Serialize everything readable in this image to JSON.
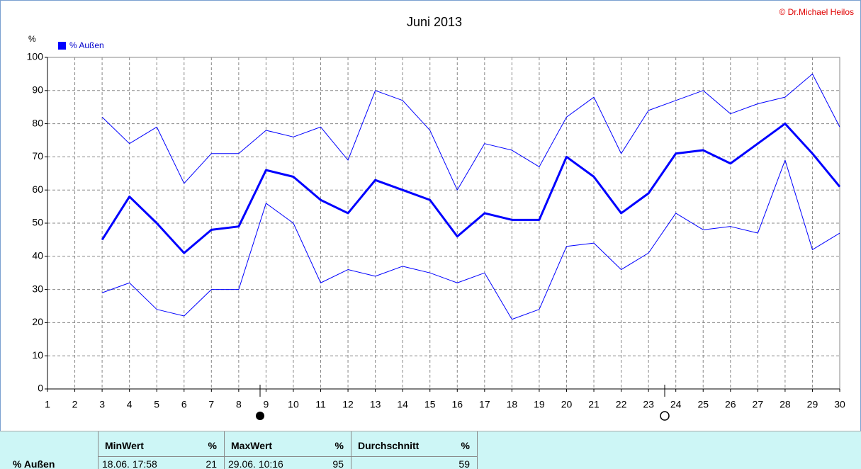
{
  "chart_data": {
    "type": "line",
    "title": "Juni 2013",
    "copyright": "© Dr.Michael Heilos",
    "y_label": "%",
    "legend": "% Außen",
    "x": [
      1,
      2,
      3,
      4,
      5,
      6,
      7,
      8,
      9,
      10,
      11,
      12,
      13,
      14,
      15,
      16,
      17,
      18,
      19,
      20,
      21,
      22,
      23,
      24,
      25,
      26,
      27,
      28,
      29,
      30
    ],
    "series": [
      {
        "color": "#0000ff",
        "width": 1,
        "values": [
          null,
          null,
          82,
          74,
          79,
          62,
          71,
          71,
          78,
          76,
          79,
          69,
          90,
          87,
          78,
          60,
          74,
          72,
          67,
          82,
          88,
          71,
          84,
          87,
          90,
          83,
          86,
          88,
          95,
          79
        ]
      },
      {
        "color": "#0000ff",
        "width": 3,
        "values": [
          null,
          null,
          45,
          58,
          50,
          41,
          48,
          49,
          66,
          64,
          57,
          53,
          63,
          60,
          57,
          46,
          53,
          51,
          51,
          70,
          64,
          53,
          59,
          71,
          72,
          68,
          74,
          80,
          71,
          61
        ]
      },
      {
        "color": "#0000ff",
        "width": 1,
        "values": [
          null,
          null,
          29,
          32,
          24,
          22,
          30,
          30,
          56,
          50,
          32,
          36,
          34,
          37,
          35,
          32,
          35,
          21,
          24,
          43,
          44,
          36,
          41,
          53,
          48,
          49,
          47,
          69,
          42,
          47
        ]
      }
    ],
    "xlim": [
      1,
      30
    ],
    "xticks": [
      1,
      2,
      3,
      4,
      5,
      6,
      7,
      8,
      9,
      10,
      11,
      12,
      13,
      14,
      15,
      16,
      17,
      18,
      19,
      20,
      21,
      22,
      23,
      24,
      25,
      26,
      27,
      28,
      29,
      30
    ],
    "ylim": [
      0,
      100
    ],
    "yticks": [
      0,
      10,
      20,
      30,
      40,
      50,
      60,
      70,
      80,
      90,
      100
    ],
    "grid": true
  },
  "table": {
    "row_label": "% Außen",
    "columns": [
      {
        "header": "MinWert",
        "unit": "%",
        "time": "18.06. 17:58",
        "value": 21
      },
      {
        "header": "MaxWert",
        "unit": "%",
        "time": "29.06. 10:16",
        "value": 95
      },
      {
        "header": "Durchschnitt",
        "unit": "%",
        "value": 59
      }
    ]
  }
}
